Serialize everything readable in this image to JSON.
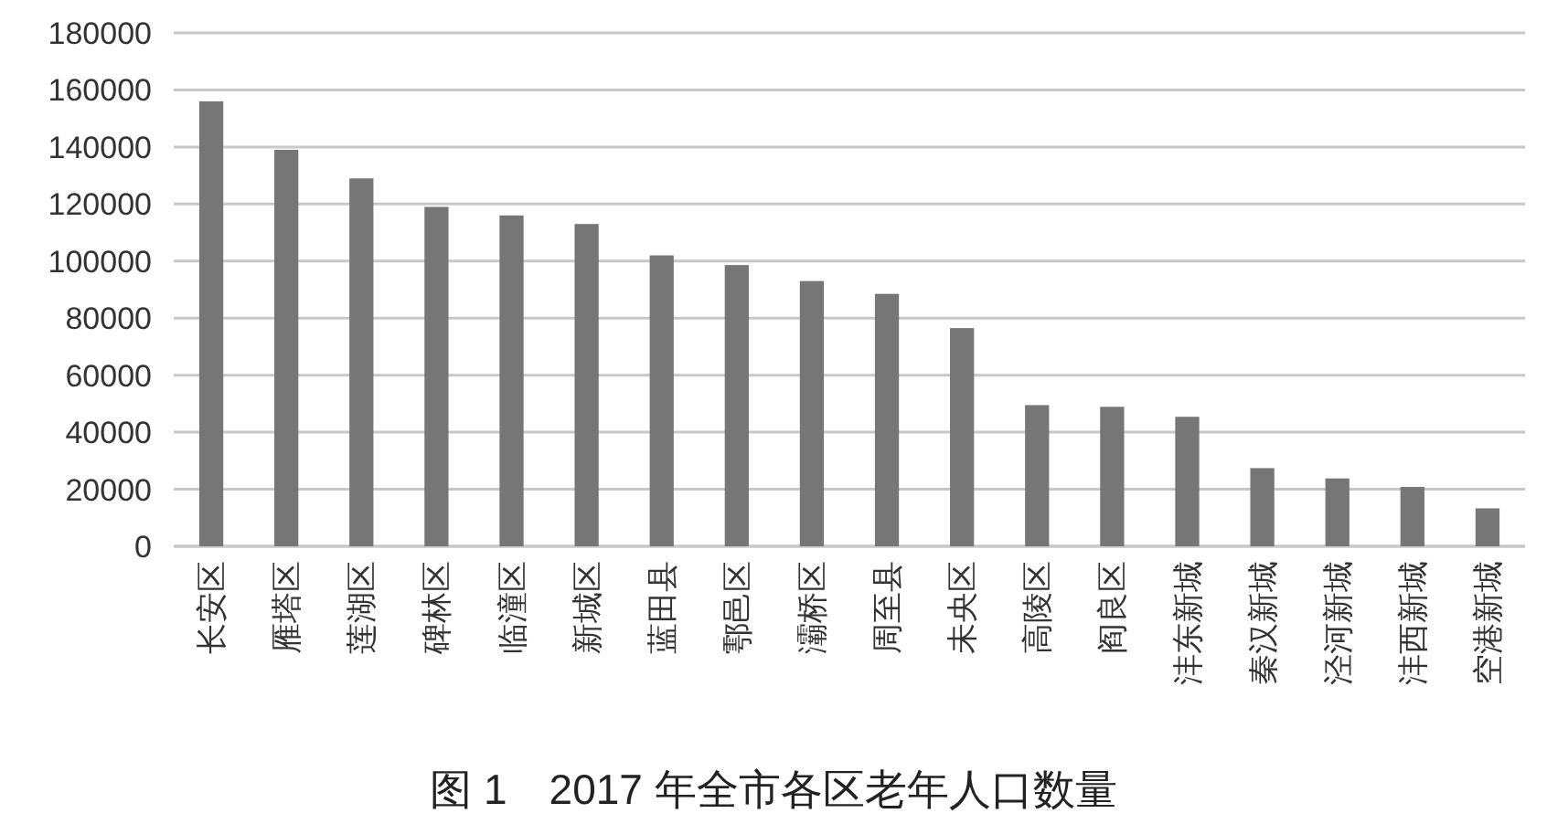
{
  "chart_data": {
    "type": "bar",
    "title": "图 1　2017 年全市各区老年人口数量",
    "categories": [
      "长安区",
      "雁塔区",
      "莲湖区",
      "碑林区",
      "临潼区",
      "新城区",
      "蓝田县",
      "鄠邑区",
      "灞桥区",
      "周至县",
      "未央区",
      "高陵区",
      "阎良区",
      "沣东新城",
      "秦汉新城",
      "泾河新城",
      "沣西新城",
      "空港新城"
    ],
    "values": [
      156000,
      139000,
      129000,
      119000,
      116000,
      113000,
      102000,
      98600,
      93000,
      88500,
      76500,
      49500,
      48900,
      45400,
      27400,
      23800,
      20800,
      13300
    ],
    "color": "#767676",
    "ylim": [
      0,
      180000
    ],
    "yticks": [
      0,
      20000,
      40000,
      60000,
      80000,
      100000,
      120000,
      140000,
      160000,
      180000
    ],
    "grid": "y"
  }
}
